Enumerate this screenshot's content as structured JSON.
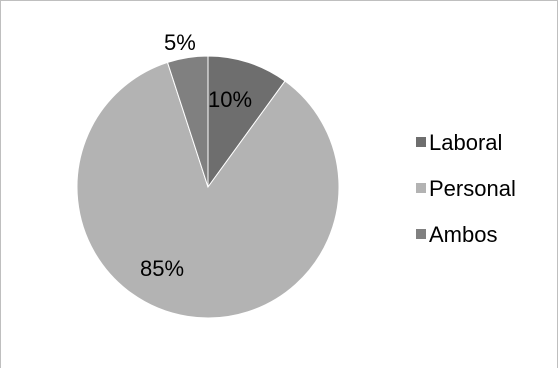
{
  "chart_data": {
    "type": "pie",
    "categories": [
      "Laboral",
      "Personal",
      "Ambos"
    ],
    "values": [
      10,
      85,
      5
    ],
    "value_labels": [
      "10%",
      "85%",
      "5%"
    ],
    "colors": [
      "#6e6e6e",
      "#b3b3b3",
      "#808080"
    ],
    "title": "",
    "legend_position": "right",
    "start_angle": "12 o'clock",
    "direction": "clockwise"
  }
}
